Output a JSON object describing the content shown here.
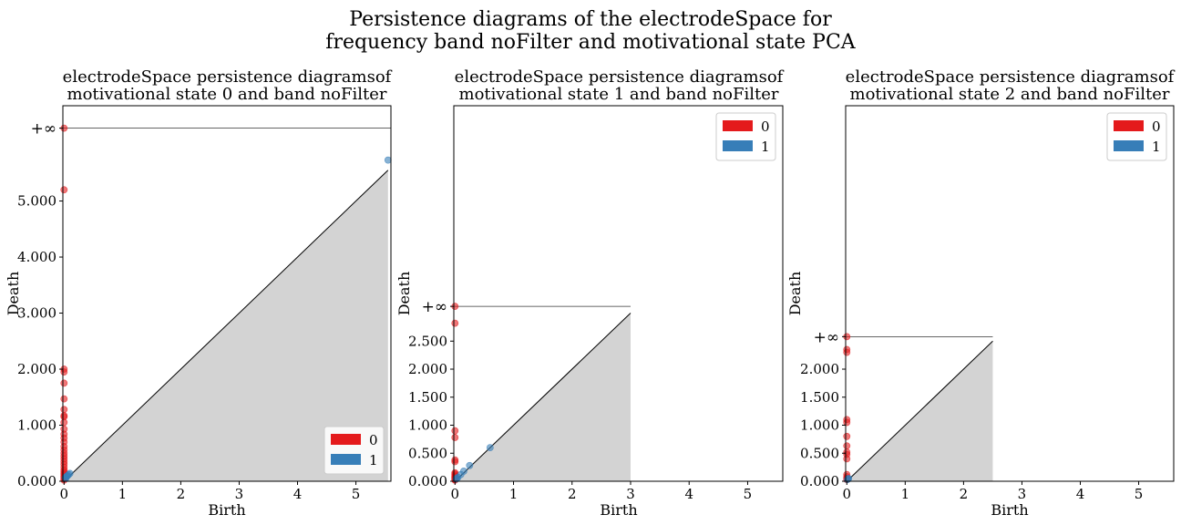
{
  "figure": {
    "title_lines": [
      "Persistence diagrams of the electrodeSpace for",
      "frequency band noFilter and motivational state PCA"
    ]
  },
  "chart_data": [
    {
      "type": "scatter",
      "title_lines": [
        "electrodeSpace persistence diagramsof",
        "motivational state 0 and band noFilter"
      ],
      "xlabel": "Birth",
      "ylabel": "Death",
      "xlim": [
        -0.02,
        5.6
      ],
      "ylim": [
        0,
        6.7
      ],
      "xticks": [
        0,
        1,
        2,
        3,
        4,
        5
      ],
      "yticks": [
        0,
        1,
        2,
        3,
        4,
        5
      ],
      "ytick_labels": [
        "0.000",
        "1.000",
        "2.000",
        "3.000",
        "4.000",
        "5.000"
      ],
      "inf_label": "+∞",
      "inf_value": 6.3,
      "diag_end": 5.55,
      "legend_position": "lower right",
      "legend": [
        "0",
        "1"
      ],
      "colors": {
        "0": "#e41a1c",
        "1": "#377eb8"
      },
      "series": [
        {
          "name": "0",
          "x": [
            0,
            0,
            0,
            0,
            0,
            0,
            0,
            0,
            0,
            0,
            0,
            0,
            0,
            0,
            0,
            0,
            0,
            0,
            0,
            0,
            0,
            0,
            0,
            0,
            0,
            0,
            0,
            0,
            0,
            0
          ],
          "y": [
            6.3,
            5.2,
            2.0,
            1.95,
            1.75,
            1.47,
            1.28,
            1.17,
            1.15,
            1.05,
            0.93,
            0.84,
            0.77,
            0.7,
            0.62,
            0.56,
            0.5,
            0.45,
            0.4,
            0.35,
            0.3,
            0.25,
            0.2,
            0.17,
            0.14,
            0.12,
            0.09,
            0.07,
            0.04,
            0.02
          ]
        },
        {
          "name": "1",
          "x": [
            5.55,
            0.02,
            0.04,
            0.06,
            0.08,
            0.1,
            0.03,
            0.05
          ],
          "y": [
            5.73,
            0.06,
            0.08,
            0.1,
            0.12,
            0.14,
            0.05,
            0.09
          ]
        }
      ]
    },
    {
      "type": "scatter",
      "title_lines": [
        "electrodeSpace persistence diagramsof",
        "motivational state 1 and band noFilter"
      ],
      "xlabel": "Birth",
      "ylabel": "Death",
      "xlim": [
        -0.02,
        5.6
      ],
      "ylim": [
        0,
        6.7
      ],
      "xticks": [
        0,
        1,
        2,
        3,
        4,
        5
      ],
      "yticks": [
        0,
        0.5,
        1.0,
        1.5,
        2.0,
        2.5
      ],
      "ytick_labels": [
        "0.000",
        "0.500",
        "1.000",
        "1.500",
        "2.000",
        "2.500"
      ],
      "inf_label": "+∞",
      "inf_value": 3.12,
      "diag_end": 3.0,
      "legend_position": "upper right",
      "legend": [
        "0",
        "1"
      ],
      "colors": {
        "0": "#e41a1c",
        "1": "#377eb8"
      },
      "series": [
        {
          "name": "0",
          "x": [
            0,
            0,
            0,
            0,
            0,
            0,
            0,
            0,
            0,
            0,
            0,
            0,
            0,
            0,
            0,
            0,
            0
          ],
          "y": [
            3.12,
            2.82,
            0.9,
            0.78,
            0.38,
            0.35,
            0.15,
            0.13,
            0.11,
            0.09,
            0.08,
            0.07,
            0.06,
            0.05,
            0.04,
            0.03,
            0.02
          ]
        },
        {
          "name": "1",
          "x": [
            0.6,
            0.25,
            0.15,
            0.1,
            0.05,
            0.03,
            0.02
          ],
          "y": [
            0.6,
            0.28,
            0.18,
            0.12,
            0.07,
            0.05,
            0.04
          ]
        }
      ]
    },
    {
      "type": "scatter",
      "title_lines": [
        "electrodeSpace persistence diagramsof",
        "motivational state 2 and band noFilter"
      ],
      "xlabel": "Birth",
      "ylabel": "Death",
      "xlim": [
        -0.02,
        5.6
      ],
      "ylim": [
        0,
        6.7
      ],
      "xticks": [
        0,
        1,
        2,
        3,
        4,
        5
      ],
      "yticks": [
        0,
        0.5,
        1.0,
        1.5,
        2.0
      ],
      "ytick_labels": [
        "0.000",
        "0.500",
        "1.000",
        "1.500",
        "2.000"
      ],
      "inf_label": "+∞",
      "inf_value": 2.58,
      "diag_end": 2.5,
      "legend_position": "upper right",
      "legend": [
        "0",
        "1"
      ],
      "colors": {
        "0": "#e41a1c",
        "1": "#377eb8"
      },
      "series": [
        {
          "name": "0",
          "x": [
            0,
            0,
            0,
            0,
            0,
            0,
            0,
            0,
            0,
            0,
            0,
            0,
            0,
            0
          ],
          "y": [
            2.58,
            2.35,
            2.3,
            1.1,
            1.05,
            0.8,
            0.63,
            0.52,
            0.48,
            0.4,
            0.12,
            0.08,
            0.05,
            0.03
          ]
        },
        {
          "name": "1",
          "x": [
            0.02,
            0.03,
            0.01
          ],
          "y": [
            0.04,
            0.05,
            0.03
          ]
        }
      ]
    }
  ]
}
